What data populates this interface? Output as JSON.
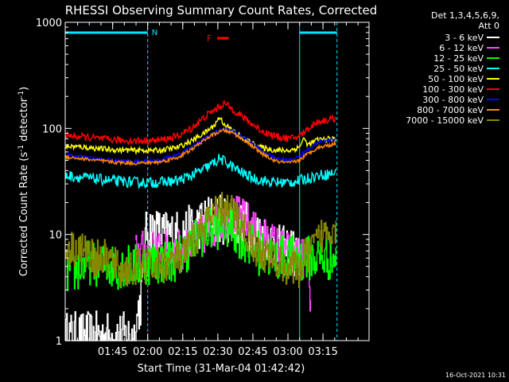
{
  "chart_data": {
    "type": "line",
    "title": "RHESSI Observing Summary Count Rates, Corrected",
    "xlabel": "Start Time (31-Mar-04 01:42:42)",
    "ylabel_prefix": "Corrected Count Rate (s",
    "ylabel_sup1": "-1",
    "ylabel_mid": " detector",
    "ylabel_sup2": "-1",
    "ylabel_suffix": ")",
    "yscale": "log",
    "ylim": [
      1,
      1000
    ],
    "xlim": [
      -18,
      112
    ],
    "x_unit": "minutes after 01:42:42",
    "yticks": [
      {
        "value": 1,
        "label": "1"
      },
      {
        "value": 10,
        "label": "10"
      },
      {
        "value": 100,
        "label": "100"
      },
      {
        "value": 1000,
        "label": "1000"
      }
    ],
    "xticks": [
      {
        "value": 2.3,
        "label": "01:45"
      },
      {
        "value": 17.3,
        "label": "02:00"
      },
      {
        "value": 32.3,
        "label": "02:15"
      },
      {
        "value": 47.3,
        "label": "02:30"
      },
      {
        "value": 62.3,
        "label": "02:45"
      },
      {
        "value": 77.3,
        "label": "03:00"
      },
      {
        "value": 92.3,
        "label": "03:15"
      }
    ],
    "xticks_minor_step": 5,
    "detectors_label": "Det 1,3,4,5,6,9,",
    "attenuator_label": "Att 0",
    "night_intervals": [
      [
        -18,
        17.3
      ],
      [
        82.3,
        98.3
      ]
    ],
    "night_marker_label": "N",
    "flare_marker": {
      "label": "F",
      "start": 47,
      "end": 52
    },
    "date_stamp": "16-Oct-2021 10:31",
    "series": [
      {
        "name": "3 - 6 keV",
        "color": "#ffffff",
        "draw": "step",
        "noise": 0.55,
        "points": [
          [
            -18,
            1.1
          ],
          [
            12,
            1.1
          ],
          [
            13,
            1.9
          ],
          [
            14,
            2.2
          ],
          [
            15,
            3.5
          ],
          [
            16,
            8
          ],
          [
            17,
            11.5
          ],
          [
            19,
            11
          ],
          [
            24,
            10
          ],
          [
            30,
            10
          ],
          [
            35,
            11
          ],
          [
            38,
            12
          ],
          [
            43,
            14
          ],
          [
            48,
            14
          ],
          [
            52,
            14
          ],
          [
            56,
            13
          ],
          [
            60,
            12
          ],
          [
            64,
            10
          ],
          [
            69,
            9
          ],
          [
            74,
            7
          ],
          [
            78,
            7
          ],
          [
            80,
            6.5
          ],
          [
            82,
            6.5
          ],
          [
            82.4,
            1
          ]
        ]
      },
      {
        "name": "6 - 12 keV",
        "color": "#ff44ff",
        "draw": "step",
        "noise": 0.45,
        "points": [
          [
            12,
            7
          ],
          [
            17,
            7
          ],
          [
            22,
            7
          ],
          [
            28,
            7
          ],
          [
            34,
            7.5
          ],
          [
            40,
            9.5
          ],
          [
            44,
            11
          ],
          [
            48,
            13
          ],
          [
            52,
            15
          ],
          [
            56,
            15
          ],
          [
            60,
            13
          ],
          [
            64,
            10
          ],
          [
            68,
            9
          ],
          [
            72,
            8
          ],
          [
            76,
            7
          ],
          [
            80,
            6.5
          ],
          [
            84,
            6
          ],
          [
            86,
            5.5
          ],
          [
            87,
            2
          ]
        ]
      },
      {
        "name": "12 - 25 keV",
        "color": "#00ff00",
        "draw": "step",
        "noise": 0.5,
        "points": [
          [
            -18,
            4.5
          ],
          [
            -14,
            4.5
          ],
          [
            -8,
            5.5
          ],
          [
            -2,
            5.2
          ],
          [
            4,
            5
          ],
          [
            12,
            5
          ],
          [
            17,
            5.5
          ],
          [
            24,
            5.5
          ],
          [
            30,
            6
          ],
          [
            36,
            8
          ],
          [
            40,
            10
          ],
          [
            44,
            11
          ],
          [
            48,
            12
          ],
          [
            52,
            12
          ],
          [
            56,
            10
          ],
          [
            60,
            8
          ],
          [
            66,
            6.5
          ],
          [
            72,
            6
          ],
          [
            78,
            6
          ],
          [
            82,
            6
          ],
          [
            86,
            6
          ],
          [
            92,
            6
          ],
          [
            98,
            6
          ]
        ]
      },
      {
        "name": "25 - 50 keV",
        "color": "#00ffff",
        "draw": "line",
        "noise": 0.12,
        "points": [
          [
            -18,
            36
          ],
          [
            -8,
            34
          ],
          [
            2,
            32
          ],
          [
            12,
            31
          ],
          [
            22,
            31
          ],
          [
            30,
            32
          ],
          [
            36,
            36
          ],
          [
            42,
            42
          ],
          [
            46,
            48
          ],
          [
            48,
            52
          ],
          [
            52,
            46
          ],
          [
            56,
            40
          ],
          [
            62,
            34
          ],
          [
            70,
            31
          ],
          [
            78,
            31
          ],
          [
            82,
            32
          ],
          [
            86,
            34
          ],
          [
            90,
            36
          ],
          [
            98,
            38
          ]
        ]
      },
      {
        "name": "50 - 100 keV",
        "color": "#ffff00",
        "draw": "line",
        "noise": 0.06,
        "points": [
          [
            -18,
            68
          ],
          [
            -8,
            66
          ],
          [
            2,
            63
          ],
          [
            12,
            62
          ],
          [
            22,
            62
          ],
          [
            30,
            66
          ],
          [
            36,
            76
          ],
          [
            42,
            92
          ],
          [
            46,
            108
          ],
          [
            48,
            128
          ],
          [
            50,
            110
          ],
          [
            54,
            94
          ],
          [
            60,
            76
          ],
          [
            66,
            66
          ],
          [
            72,
            62
          ],
          [
            78,
            62
          ],
          [
            82,
            66
          ],
          [
            84,
            80
          ],
          [
            86,
            70
          ],
          [
            90,
            78
          ],
          [
            98,
            80
          ]
        ]
      },
      {
        "name": "100 - 300 keV",
        "color": "#ff0000",
        "draw": "line",
        "noise": 0.08,
        "points": [
          [
            -18,
            86
          ],
          [
            -8,
            82
          ],
          [
            2,
            78
          ],
          [
            12,
            76
          ],
          [
            22,
            77
          ],
          [
            30,
            84
          ],
          [
            36,
            100
          ],
          [
            42,
            130
          ],
          [
            46,
            150
          ],
          [
            50,
            172
          ],
          [
            54,
            150
          ],
          [
            60,
            118
          ],
          [
            66,
            95
          ],
          [
            72,
            84
          ],
          [
            78,
            80
          ],
          [
            82,
            84
          ],
          [
            86,
            100
          ],
          [
            90,
            116
          ],
          [
            98,
            124
          ]
        ]
      },
      {
        "name": "300 - 800 keV",
        "color": "#0000ff",
        "draw": "line",
        "noise": 0.04,
        "points": [
          [
            -18,
            56
          ],
          [
            -8,
            53
          ],
          [
            2,
            50
          ],
          [
            12,
            49
          ],
          [
            22,
            50
          ],
          [
            30,
            56
          ],
          [
            36,
            66
          ],
          [
            42,
            82
          ],
          [
            46,
            92
          ],
          [
            50,
            100
          ],
          [
            54,
            94
          ],
          [
            60,
            78
          ],
          [
            66,
            62
          ],
          [
            72,
            52
          ],
          [
            78,
            50
          ],
          [
            82,
            54
          ],
          [
            86,
            64
          ],
          [
            90,
            74
          ],
          [
            98,
            80
          ]
        ]
      },
      {
        "name": "800 - 7000 keV",
        "color": "#ff8800",
        "draw": "line",
        "noise": 0.04,
        "points": [
          [
            -18,
            54
          ],
          [
            -8,
            51
          ],
          [
            2,
            48
          ],
          [
            12,
            47
          ],
          [
            22,
            48
          ],
          [
            30,
            53
          ],
          [
            36,
            63
          ],
          [
            42,
            79
          ],
          [
            46,
            89
          ],
          [
            50,
            96
          ],
          [
            54,
            90
          ],
          [
            60,
            74
          ],
          [
            66,
            58
          ],
          [
            72,
            49
          ],
          [
            78,
            47
          ],
          [
            82,
            50
          ],
          [
            86,
            58
          ],
          [
            90,
            66
          ],
          [
            98,
            72
          ]
        ]
      },
      {
        "name": "7000 - 15000 keV",
        "color": "#888800",
        "draw": "step",
        "noise": 0.4,
        "points": [
          [
            -18,
            7.5
          ],
          [
            -12,
            7.5
          ],
          [
            -6,
            6
          ],
          [
            0,
            6
          ],
          [
            6,
            4.5
          ],
          [
            14,
            5
          ],
          [
            20,
            5
          ],
          [
            26,
            5.5
          ],
          [
            32,
            6
          ],
          [
            36,
            8
          ],
          [
            40,
            11
          ],
          [
            44,
            14
          ],
          [
            48,
            17
          ],
          [
            52,
            17
          ],
          [
            56,
            14
          ],
          [
            60,
            10
          ],
          [
            64,
            7
          ],
          [
            70,
            6
          ],
          [
            76,
            5
          ],
          [
            82,
            4.5
          ],
          [
            84,
            6
          ],
          [
            88,
            7.5
          ],
          [
            92,
            10
          ],
          [
            96,
            12
          ],
          [
            98,
            12
          ]
        ]
      }
    ]
  }
}
